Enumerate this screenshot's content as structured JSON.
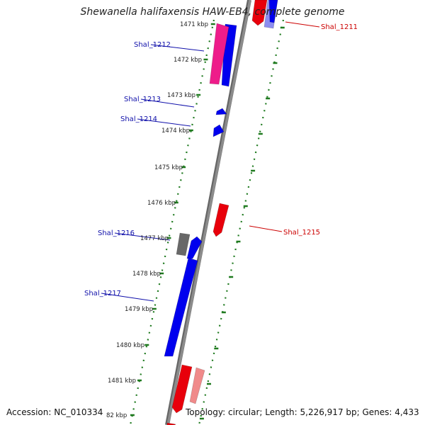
{
  "title": "Shewanella halifaxensis HAW-EB4, complete genome",
  "footer": {
    "accession": "Accession: NC_010334",
    "topology": "Topology: circular; Length: 5,226,917 bp; Genes: 4,433"
  },
  "colors": {
    "backbone": "#8c8c8c",
    "forward_gene": "#e8000b",
    "forward_gene_light": "#f08a8a",
    "reverse_gene": "#0000ee",
    "reverse_gene_light": "#8d8df0",
    "pseudo_gene": "#686868",
    "highlight_gene": "#ee1c8a",
    "label_forward": "#cc0000",
    "label_reverse": "#1010aa",
    "tick_dots": "#1f7a1f"
  },
  "scale_labels": [
    "1471 kbp",
    "1472 kbp",
    "1473 kbp",
    "1474 kbp",
    "1475 kbp",
    "1476 kbp",
    "1477 kbp",
    "1478 kbp",
    "1479 kbp",
    "1480 kbp",
    "1481 kbp",
    "82 kbp"
  ],
  "gene_labels": {
    "reverse": [
      "Shal_1212",
      "Shal_1213",
      "Shal_1214",
      "Shal_1216",
      "Shal_1217"
    ],
    "forward": [
      "Shal_1211",
      "Shal_1215"
    ]
  }
}
